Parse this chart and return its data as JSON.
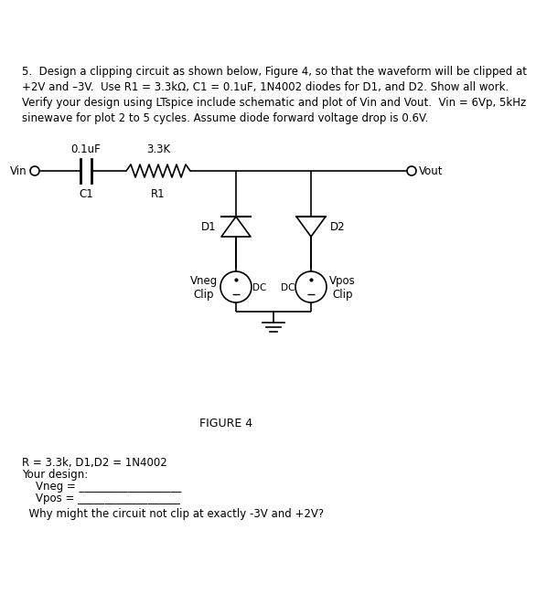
{
  "title_text": "5.  Design a clipping circuit as shown below, Figure 4, so that the waveform will be clipped at\n+2V and –3V.  Use R1 = 3.3kΩ, C1 = 0.1uF, 1N4002 diodes for D1, and D2. Show all work.\nVerify your design using LTspice include schematic and plot of Vin and Vout.  Vin = 6Vp, 5kHz\nsinewave for plot 2 to 5 cycles. Assume diode forward voltage drop is 0.6V.",
  "figure_label": "FIGURE 4",
  "bottom_line1": "R = 3.3k, D1,D2 = 1N4002",
  "bottom_line2": "Your design:",
  "bottom_line3": "    Vneg = ___________________",
  "bottom_line4": "    Vpos = ___________________",
  "bottom_line5": "  Why might the circuit not clip at exactly -3V and +2V?",
  "cap_label": "0.1uF",
  "res_label": "3.3K",
  "c1_label": "C1",
  "r1_label": "R1",
  "vin_label": "Vin",
  "vout_label": "Vout",
  "d1_label": "D1",
  "d2_label": "D2",
  "vneg_label": "Vneg\nClip",
  "vpos_label": "Vpos\nClip",
  "dc_label": "DC",
  "background_color": "#ffffff",
  "line_color": "#000000",
  "font_size": 8.5,
  "title_font": 8.5
}
